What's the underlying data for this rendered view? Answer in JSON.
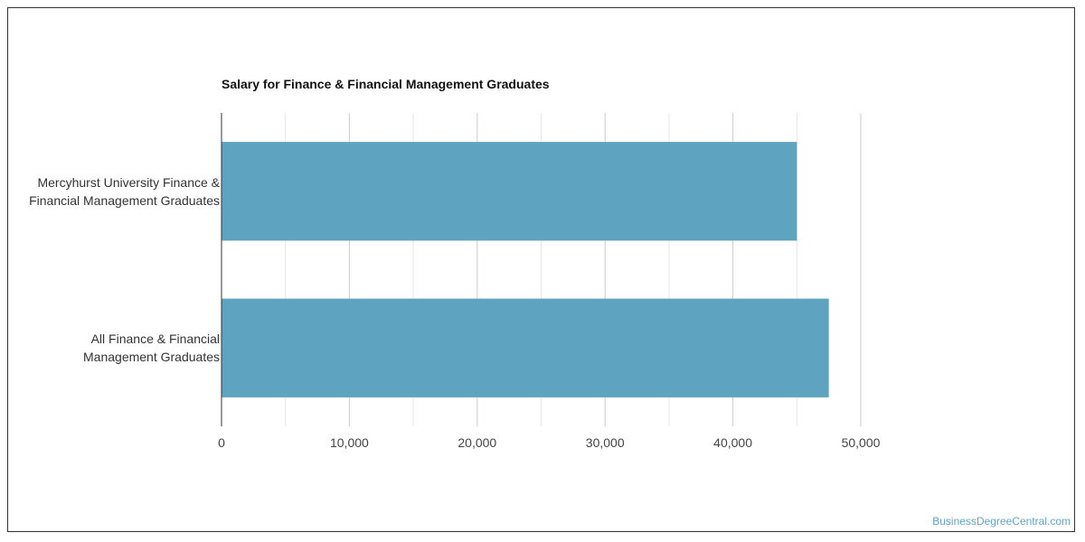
{
  "chart_data": {
    "type": "bar",
    "orientation": "horizontal",
    "title": "Salary for Finance & Financial Management Graduates",
    "categories": [
      "Mercyhurst University Finance & Financial Management Graduates",
      "All Finance & Financial Management Graduates"
    ],
    "category_lines": [
      [
        "Mercyhurst University Finance &",
        "Financial Management Graduates"
      ],
      [
        "All Finance & Financial",
        "Management Graduates"
      ]
    ],
    "values": [
      45000,
      47500
    ],
    "xlim": [
      0,
      50000
    ],
    "xticks": [
      0,
      10000,
      20000,
      30000,
      40000,
      50000
    ],
    "xtick_labels": [
      "0",
      "10,000",
      "20,000",
      "30,000",
      "40,000",
      "50,000"
    ],
    "xlabel": "",
    "ylabel": "",
    "grid": true,
    "legend": "none",
    "bar_color": "#5ea3bf"
  },
  "watermark": "BusinessDegreeCentral.com"
}
